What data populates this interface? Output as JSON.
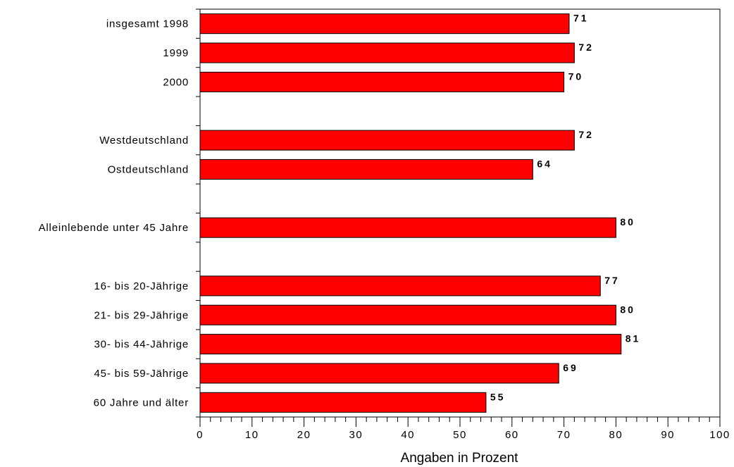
{
  "chart_data": {
    "type": "bar",
    "orientation": "horizontal",
    "categories": [
      "insgesamt 1998",
      "1999",
      "2000",
      "",
      "Westdeutschland",
      "Ostdeutschland",
      "",
      "Alleinlebende unter 45 Jahre",
      "",
      "16- bis 20-Jährige",
      "21- bis 29-Jährige",
      "30- bis 44-Jährige",
      "45- bis 59-Jährige",
      "60 Jahre und älter"
    ],
    "values": [
      71,
      72,
      70,
      null,
      72,
      64,
      null,
      80,
      null,
      77,
      80,
      81,
      69,
      55
    ],
    "value_labels": [
      "71",
      "72",
      "70",
      "",
      "72",
      "64",
      "",
      "80",
      "",
      "77",
      "80",
      "81",
      "69",
      "55"
    ],
    "xlabel": "Angaben in Prozent",
    "ylabel": "",
    "xlim": [
      0,
      100
    ],
    "xticks": [
      "0",
      "10",
      "20",
      "30",
      "40",
      "50",
      "60",
      "70",
      "80",
      "90",
      "100"
    ],
    "bar_color": "#ff0000",
    "grid": false,
    "legend": "none"
  }
}
